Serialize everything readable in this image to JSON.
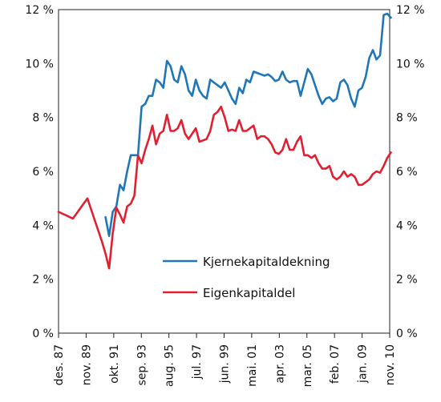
{
  "chart_data": {
    "type": "line",
    "title": "",
    "xlabel": "",
    "ylabel": "",
    "ylim": [
      0,
      12
    ],
    "y_ticks": [
      0,
      2,
      4,
      6,
      8,
      10,
      12
    ],
    "y_tick_suffix": " %",
    "y_axis_both_sides": true,
    "grid": false,
    "x_tick_labels": [
      "des. 87",
      "nov. 89",
      "okt. 91",
      "sep. 93",
      "aug. 95",
      "jul. 97",
      "jun. 99",
      "mai. 01",
      "apr. 03",
      "mar. 05",
      "feb. 07",
      "jan. 09",
      "nov. 10"
    ],
    "legend_position": "lower-right",
    "series": [
      {
        "name": "Kjernekapitaldekning",
        "color": "#1f77b8",
        "x": [
          "1991-03",
          "1991-06",
          "1991-09",
          "1991-12",
          "1992-03",
          "1992-06",
          "1992-09",
          "1992-12",
          "1993-03",
          "1993-06",
          "1993-09",
          "1993-12",
          "1994-03",
          "1994-06",
          "1994-09",
          "1994-12",
          "1995-03",
          "1995-06",
          "1995-09",
          "1995-12",
          "1996-03",
          "1996-06",
          "1996-09",
          "1996-12",
          "1997-03",
          "1997-06",
          "1997-09",
          "1997-12",
          "1998-03",
          "1998-06",
          "1998-09",
          "1998-12",
          "1999-03",
          "1999-06",
          "1999-09",
          "1999-12",
          "2000-03",
          "2000-06",
          "2000-09",
          "2000-12",
          "2001-03",
          "2001-06",
          "2001-09",
          "2001-12",
          "2002-03",
          "2002-06",
          "2002-09",
          "2002-12",
          "2003-03",
          "2003-06",
          "2003-09",
          "2003-12",
          "2004-03",
          "2004-06",
          "2004-09",
          "2004-12",
          "2005-03",
          "2005-06",
          "2005-09",
          "2005-12",
          "2006-03",
          "2006-06",
          "2006-09",
          "2006-12",
          "2007-03",
          "2007-06",
          "2007-09",
          "2007-12",
          "2008-03",
          "2008-06",
          "2008-09",
          "2008-12",
          "2009-03",
          "2009-06",
          "2009-09",
          "2009-12",
          "2010-03",
          "2010-06",
          "2010-09",
          "2010-12"
        ],
        "y": [
          4.3,
          3.6,
          4.5,
          4.7,
          5.5,
          5.3,
          6.0,
          6.6,
          6.6,
          6.6,
          8.4,
          8.5,
          8.8,
          8.8,
          9.4,
          9.3,
          9.1,
          10.1,
          9.9,
          9.4,
          9.3,
          9.9,
          9.6,
          9.0,
          8.8,
          9.4,
          9.0,
          8.8,
          8.7,
          9.4,
          9.3,
          9.2,
          9.1,
          9.3,
          9.0,
          8.7,
          8.5,
          9.1,
          8.9,
          9.4,
          9.3,
          9.7,
          9.65,
          9.6,
          9.55,
          9.6,
          9.5,
          9.35,
          9.4,
          9.7,
          9.4,
          9.3,
          9.35,
          9.35,
          8.8,
          9.3,
          9.8,
          9.6,
          9.2,
          8.8,
          8.5,
          8.7,
          8.75,
          8.6,
          8.7,
          9.3,
          9.4,
          9.2,
          8.7,
          8.4,
          9.0,
          9.1,
          9.5,
          10.2,
          10.5,
          10.15,
          10.3,
          11.8,
          11.85,
          11.7
        ]
      },
      {
        "name": "Eigenkapitaldel",
        "color": "#e02030",
        "x": [
          "1987-12",
          "1988-12",
          "1989-12",
          "1990-12",
          "1991-03",
          "1991-06",
          "1991-09",
          "1991-12",
          "1992-03",
          "1992-06",
          "1992-09",
          "1992-12",
          "1993-03",
          "1993-06",
          "1993-09",
          "1993-12",
          "1994-03",
          "1994-06",
          "1994-09",
          "1994-12",
          "1995-03",
          "1995-06",
          "1995-09",
          "1995-12",
          "1996-03",
          "1996-06",
          "1996-09",
          "1996-12",
          "1997-03",
          "1997-06",
          "1997-09",
          "1997-12",
          "1998-03",
          "1998-06",
          "1998-09",
          "1998-12",
          "1999-03",
          "1999-06",
          "1999-09",
          "1999-12",
          "2000-03",
          "2000-06",
          "2000-09",
          "2000-12",
          "2001-03",
          "2001-06",
          "2001-09",
          "2001-12",
          "2002-03",
          "2002-06",
          "2002-09",
          "2002-12",
          "2003-03",
          "2003-06",
          "2003-09",
          "2003-12",
          "2004-03",
          "2004-06",
          "2004-09",
          "2004-12",
          "2005-03",
          "2005-06",
          "2005-09",
          "2005-12",
          "2006-03",
          "2006-06",
          "2006-09",
          "2006-12",
          "2007-03",
          "2007-06",
          "2007-09",
          "2007-12",
          "2008-03",
          "2008-06",
          "2008-09",
          "2008-12",
          "2009-03",
          "2009-06",
          "2009-09",
          "2009-12",
          "2010-03",
          "2010-06",
          "2010-09",
          "2010-12"
        ],
        "y": [
          4.5,
          4.25,
          5.0,
          3.4,
          2.95,
          2.4,
          3.7,
          4.65,
          4.4,
          4.1,
          4.7,
          4.8,
          5.1,
          6.6,
          6.3,
          6.8,
          7.2,
          7.7,
          7.0,
          7.4,
          7.5,
          8.1,
          7.5,
          7.5,
          7.6,
          7.9,
          7.4,
          7.2,
          7.4,
          7.6,
          7.1,
          7.15,
          7.2,
          7.5,
          8.1,
          8.2,
          8.4,
          8.0,
          7.5,
          7.55,
          7.5,
          7.9,
          7.5,
          7.5,
          7.6,
          7.7,
          7.2,
          7.3,
          7.3,
          7.2,
          7.0,
          6.7,
          6.65,
          6.8,
          7.2,
          6.8,
          6.8,
          7.1,
          7.3,
          6.6,
          6.6,
          6.5,
          6.6,
          6.3,
          6.1,
          6.1,
          6.2,
          5.8,
          5.7,
          5.8,
          6.0,
          5.8,
          5.9,
          5.8,
          5.5,
          5.5,
          5.6,
          5.7,
          5.9,
          6.0,
          5.95,
          6.2,
          6.5,
          6.7
        ]
      }
    ]
  }
}
